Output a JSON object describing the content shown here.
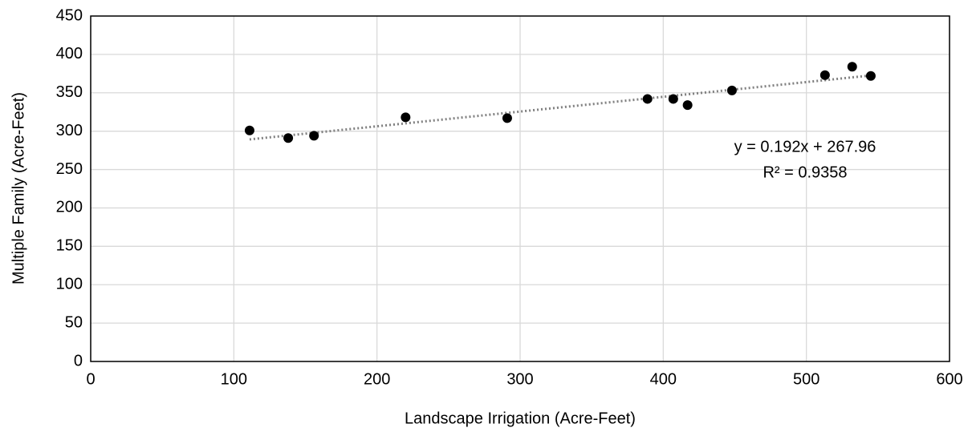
{
  "chart_data": {
    "type": "scatter",
    "x_label": "Landscape Irrigation (Acre-Feet)",
    "y_label": "Multiple Family (Acre-Feet)",
    "x": [
      111,
      138,
      156,
      220,
      291,
      389,
      407,
      417,
      448,
      513,
      532,
      545
    ],
    "values": [
      301,
      291,
      294,
      318,
      317,
      342,
      342,
      334,
      353,
      373,
      384,
      372
    ],
    "color": "#000000",
    "xlim": [
      0,
      600
    ],
    "xticks": [
      0,
      100,
      200,
      300,
      400,
      500,
      600
    ],
    "ylim": [
      0,
      450
    ],
    "yticks": [
      0,
      50,
      100,
      150,
      200,
      250,
      300,
      350,
      400,
      450
    ],
    "grid": true,
    "trendline": {
      "slope": 0.192,
      "intercept": 267.96,
      "color": "#808080",
      "equation": "y = 0.192x + 267.96",
      "r_squared": "R² = 0.9358"
    }
  }
}
